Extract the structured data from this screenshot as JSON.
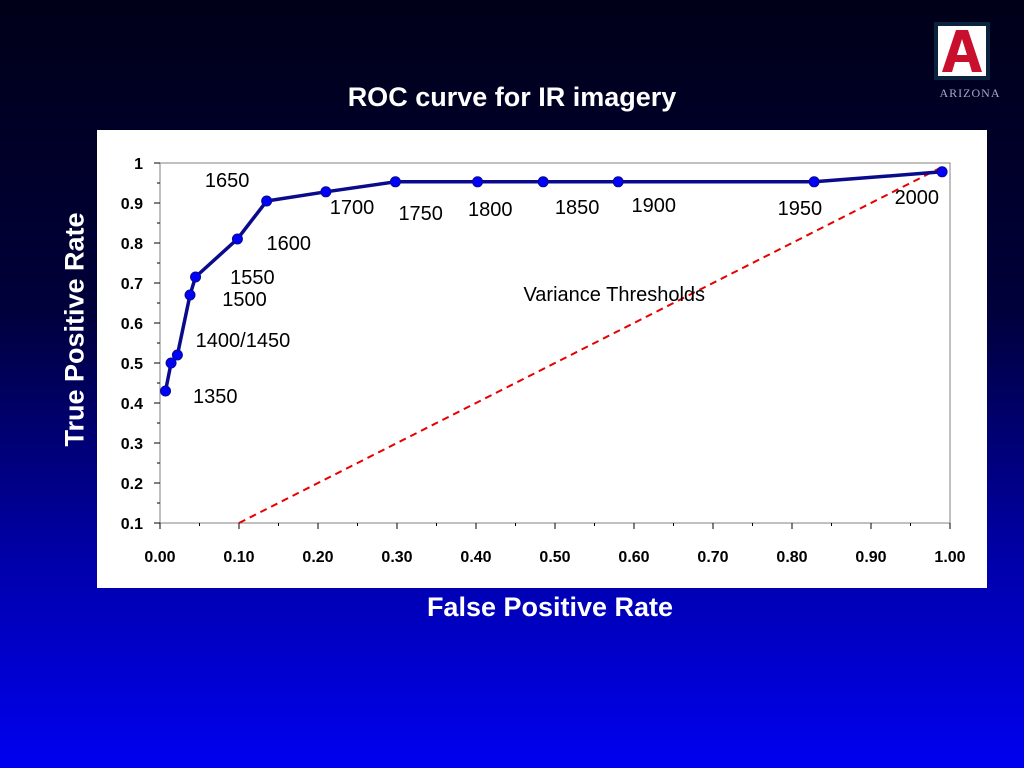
{
  "slide": {
    "title": "ROC curve for IR imagery",
    "logo_text": "ARIZONA",
    "logo_letter": "A"
  },
  "colors": {
    "background_top": "#000018",
    "background_bottom": "#0000f0",
    "series": "#0a0a8c",
    "marker": "#0000ff",
    "reference": "#e60000",
    "logo_red": "#c8102e",
    "logo_navy": "#0c2340"
  },
  "chart_data": {
    "type": "line",
    "title": "ROC curve for IR imagery",
    "xlabel": "False Positive Rate",
    "ylabel": "True Positive Rate",
    "xlim": [
      0,
      1
    ],
    "ylim": [
      0.1,
      1
    ],
    "x_ticks": [
      "0.00",
      "0.10",
      "0.20",
      "0.30",
      "0.40",
      "0.50",
      "0.60",
      "0.70",
      "0.80",
      "0.90",
      "1.00"
    ],
    "y_ticks": [
      "0.1",
      "0.2",
      "0.3",
      "0.4",
      "0.5",
      "0.6",
      "0.7",
      "0.8",
      "0.9",
      "1"
    ],
    "grid": false,
    "annotation": "Variance Thresholds",
    "series": [
      {
        "points": [
          {
            "x": 0.007,
            "y": 0.43
          },
          {
            "x": 0.014,
            "y": 0.5
          },
          {
            "x": 0.022,
            "y": 0.52
          },
          {
            "x": 0.038,
            "y": 0.67
          },
          {
            "x": 0.045,
            "y": 0.715
          },
          {
            "x": 0.098,
            "y": 0.81
          },
          {
            "x": 0.135,
            "y": 0.905
          },
          {
            "x": 0.21,
            "y": 0.928
          },
          {
            "x": 0.298,
            "y": 0.953
          },
          {
            "x": 0.402,
            "y": 0.953
          },
          {
            "x": 0.485,
            "y": 0.953
          },
          {
            "x": 0.58,
            "y": 0.953
          },
          {
            "x": 0.828,
            "y": 0.953
          },
          {
            "x": 0.99,
            "y": 0.978
          }
        ]
      }
    ],
    "reference_line": {
      "x": [
        0.1,
        0.99
      ],
      "y": [
        0.1,
        0.99
      ]
    },
    "point_labels": [
      {
        "text": "1350",
        "x": 0.07,
        "y": 0.4
      },
      {
        "text": "1400/1450",
        "x": 0.105,
        "y": 0.54
      },
      {
        "text": "1500",
        "x": 0.107,
        "y": 0.643
      },
      {
        "text": "1550",
        "x": 0.117,
        "y": 0.697
      },
      {
        "text": "1600",
        "x": 0.163,
        "y": 0.783
      },
      {
        "text": "1650",
        "x": 0.085,
        "y": 0.94
      },
      {
        "text": "1700",
        "x": 0.243,
        "y": 0.872
      },
      {
        "text": "1750",
        "x": 0.33,
        "y": 0.858
      },
      {
        "text": "1800",
        "x": 0.418,
        "y": 0.867
      },
      {
        "text": "1850",
        "x": 0.528,
        "y": 0.872
      },
      {
        "text": "1900",
        "x": 0.625,
        "y": 0.877
      },
      {
        "text": "1950",
        "x": 0.81,
        "y": 0.87
      },
      {
        "text": "2000",
        "x": 0.958,
        "y": 0.898
      }
    ]
  }
}
